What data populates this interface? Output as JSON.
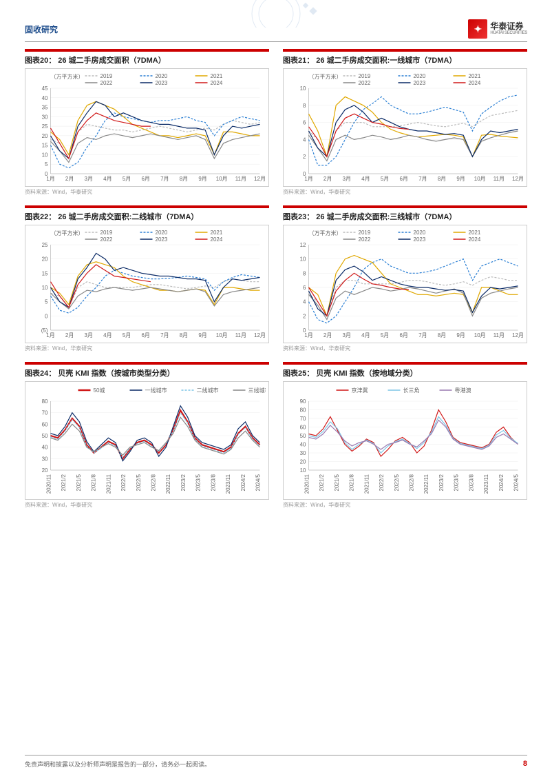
{
  "header": {
    "category": "固收研究",
    "logo_cn": "华泰证券",
    "logo_en": "HUATAI SECURITIES"
  },
  "footer": {
    "disclaimer": "免责声明和披露以及分析师声明是报告的一部分，请务必一起阅读。",
    "page": "8"
  },
  "source": "资料来源：Wind，华泰研究",
  "colors": {
    "2019": "#bbbbbb",
    "2020": "#2a7fd4",
    "2021": "#e0a800",
    "2022": "#888888",
    "2023": "#0a2a66",
    "2024": "#d01818",
    "city50": "#d01818",
    "tier1": "#0a2a66",
    "tier2": "#7fc6e6",
    "tier3": "#888888",
    "jjj": "#d01818",
    "csy": "#7fc6e6",
    "yga": "#9a7ab0",
    "title_border": "#c00",
    "box_border": "#ccc",
    "axis": "#999",
    "text": "#333"
  },
  "charts": [
    {
      "id": "c20",
      "title": "图表20：  26 城二手房成交面积（7DMA）",
      "ylabel": "（万平方米）",
      "xlabels": [
        "1月",
        "2月",
        "3月",
        "4月",
        "5月",
        "6月",
        "7月",
        "8月",
        "9月",
        "10月",
        "11月",
        "12月"
      ],
      "ylim": [
        0,
        45
      ],
      "ytick": 5,
      "series": [
        {
          "name": "2019",
          "dash": true,
          "color": "#bbbbbb",
          "data": [
            18,
            16,
            8,
            22,
            26,
            25,
            24,
            23,
            23,
            22,
            23,
            24,
            25,
            24,
            23,
            22,
            23,
            24,
            23,
            26,
            28,
            27,
            26,
            27
          ]
        },
        {
          "name": "2020",
          "dash": true,
          "color": "#2a7fd4",
          "data": [
            15,
            5,
            3,
            6,
            14,
            20,
            28,
            32,
            30,
            29,
            28,
            27,
            28,
            28,
            29,
            30,
            28,
            27,
            20,
            26,
            28,
            30,
            29,
            28
          ]
        },
        {
          "name": "2021",
          "dash": false,
          "color": "#e0a800",
          "data": [
            22,
            18,
            10,
            28,
            36,
            38,
            36,
            34,
            30,
            26,
            24,
            22,
            20,
            20,
            19,
            20,
            21,
            20,
            10,
            22,
            22,
            21,
            20,
            20
          ]
        },
        {
          "name": "2022",
          "dash": false,
          "color": "#888888",
          "data": [
            17,
            12,
            6,
            16,
            19,
            18,
            20,
            21,
            20,
            19,
            20,
            21,
            20,
            19,
            18,
            19,
            20,
            18,
            8,
            16,
            18,
            19,
            20,
            21
          ]
        },
        {
          "name": "2023",
          "dash": false,
          "color": "#0a2a66",
          "data": [
            20,
            12,
            8,
            25,
            32,
            38,
            36,
            30,
            32,
            30,
            28,
            27,
            26,
            26,
            25,
            24,
            24,
            23,
            10,
            20,
            25,
            24,
            25,
            26
          ]
        },
        {
          "name": "2024",
          "dash": false,
          "color": "#d01818",
          "data": [
            24,
            16,
            8,
            22,
            28,
            32,
            30,
            28,
            27,
            26,
            25,
            25
          ]
        }
      ]
    },
    {
      "id": "c21",
      "title": "图表21：  26 城二手房成交面积:一线城市（7DMA）",
      "ylabel": "（万平方米）",
      "xlabels": [
        "1月",
        "2月",
        "3月",
        "4月",
        "5月",
        "6月",
        "7月",
        "8月",
        "9月",
        "10月",
        "11月",
        "12月"
      ],
      "ylim": [
        0,
        10
      ],
      "ytick": 2,
      "series": [
        {
          "name": "2019",
          "dash": true,
          "color": "#bbbbbb",
          "data": [
            5,
            4,
            2,
            5,
            6,
            6,
            6,
            5.5,
            5.5,
            5.5,
            5.6,
            5.8,
            6,
            5.8,
            5.6,
            5.5,
            5.7,
            5.9,
            5.5,
            6.2,
            6.8,
            7,
            7.2,
            7.4
          ]
        },
        {
          "name": "2020",
          "dash": true,
          "color": "#2a7fd4",
          "data": [
            4,
            1,
            1,
            2,
            4,
            6,
            7.5,
            8.2,
            9,
            8,
            7.5,
            7,
            7,
            7.2,
            7.5,
            7.8,
            7.5,
            7.2,
            5,
            7,
            7.8,
            8.5,
            9,
            9.2
          ]
        },
        {
          "name": "2021",
          "dash": false,
          "color": "#e0a800",
          "data": [
            7,
            5,
            2,
            8,
            9,
            8.5,
            8,
            7.2,
            6,
            5.2,
            4.8,
            4.5,
            4.3,
            4.4,
            4.5,
            4.6,
            4.5,
            4.3,
            2,
            4.5,
            4.6,
            4.4,
            4.3,
            4.2
          ]
        },
        {
          "name": "2022",
          "dash": false,
          "color": "#888888",
          "data": [
            4.5,
            3,
            1.5,
            4,
            4.5,
            4,
            4.2,
            4.5,
            4.3,
            4,
            4.2,
            4.5,
            4.3,
            4,
            3.8,
            4,
            4.2,
            4,
            2,
            3.8,
            4.2,
            4.5,
            4.8,
            5
          ]
        },
        {
          "name": "2023",
          "dash": false,
          "color": "#0a2a66",
          "data": [
            5,
            3,
            2,
            6,
            7.5,
            8,
            7.2,
            6,
            6.5,
            6,
            5.5,
            5.2,
            5,
            5,
            4.8,
            4.6,
            4.7,
            4.5,
            2,
            4,
            5,
            4.8,
            5,
            5.2
          ]
        },
        {
          "name": "2024",
          "dash": false,
          "color": "#d01818",
          "data": [
            5.5,
            4,
            2,
            5,
            6.5,
            7,
            6.5,
            6,
            5.8,
            5.5,
            5.3,
            5.2
          ]
        }
      ]
    },
    {
      "id": "c22",
      "title": "图表22：  26 城二手房成交面积:二线城市（7DMA）",
      "ylabel": "（万平方米）",
      "xlabels": [
        "1月",
        "2月",
        "3月",
        "4月",
        "5月",
        "6月",
        "7月",
        "8月",
        "9月",
        "10月",
        "11月",
        "12月"
      ],
      "ylim": [
        -5,
        25
      ],
      "ytick": 5,
      "series": [
        {
          "name": "2019",
          "dash": true,
          "color": "#bbbbbb",
          "data": [
            8,
            7,
            3,
            10,
            12,
            11,
            10,
            10,
            10,
            10,
            10.5,
            11,
            11,
            10.5,
            10,
            9.5,
            10,
            10.5,
            10,
            12,
            13,
            12.5,
            12,
            12
          ]
        },
        {
          "name": "2020",
          "dash": true,
          "color": "#2a7fd4",
          "data": [
            7,
            2,
            1,
            3,
            7,
            10,
            14,
            16,
            15,
            14,
            13.5,
            13,
            13,
            13.2,
            13.5,
            14,
            13.5,
            13,
            9,
            12,
            13.5,
            14.5,
            14,
            13.5
          ]
        },
        {
          "name": "2021",
          "dash": false,
          "color": "#e0a800",
          "data": [
            10,
            8,
            4,
            14,
            18,
            19,
            18,
            17,
            14,
            12,
            11,
            10,
            9,
            9,
            8.5,
            9,
            9.5,
            9,
            4,
            10,
            10,
            9.5,
            9,
            9
          ]
        },
        {
          "name": "2022",
          "dash": false,
          "color": "#888888",
          "data": [
            8,
            5,
            2.5,
            7,
            9,
            8.5,
            9.5,
            10,
            9.5,
            9,
            9.5,
            10,
            9.5,
            9,
            8.5,
            9,
            9.5,
            8.5,
            3.5,
            7.5,
            8.5,
            9,
            9.5,
            10
          ]
        },
        {
          "name": "2023",
          "dash": false,
          "color": "#0a2a66",
          "data": [
            10,
            5,
            3,
            13,
            17,
            22,
            20,
            16,
            17,
            16,
            15,
            14.5,
            14,
            14,
            13.5,
            13,
            13,
            12.5,
            5,
            10,
            13,
            12.5,
            13,
            13.5
          ]
        },
        {
          "name": "2024",
          "dash": false,
          "color": "#d01818",
          "data": [
            12,
            7,
            3,
            11,
            15,
            18,
            16,
            14,
            13.5,
            13,
            12.5,
            12
          ]
        }
      ]
    },
    {
      "id": "c23",
      "title": "图表23：  26 城二手房成交面积:三线城市（7DMA）",
      "ylabel": "（万平方米）",
      "xlabels": [
        "1月",
        "2月",
        "3月",
        "4月",
        "5月",
        "6月",
        "7月",
        "8月",
        "9月",
        "10月",
        "11月",
        "12月"
      ],
      "ylim": [
        0,
        12
      ],
      "ytick": 2,
      "series": [
        {
          "name": "2019",
          "dash": true,
          "color": "#bbbbbb",
          "data": [
            5,
            4,
            2,
            6,
            7,
            7,
            6.5,
            6.5,
            6.5,
            6.5,
            6.7,
            7,
            7,
            6.8,
            6.5,
            6.3,
            6.5,
            6.8,
            6.3,
            7,
            7.5,
            7.3,
            7,
            7
          ]
        },
        {
          "name": "2020",
          "dash": true,
          "color": "#2a7fd4",
          "data": [
            4,
            1.5,
            1,
            2,
            4,
            6,
            8.5,
            9.5,
            10,
            9,
            8.5,
            8,
            8,
            8.2,
            8.5,
            9,
            9.5,
            10,
            7,
            9,
            9.5,
            10,
            9.5,
            9
          ]
        },
        {
          "name": "2021",
          "dash": false,
          "color": "#e0a800",
          "data": [
            6,
            5,
            2,
            8,
            10,
            10.5,
            10,
            9.5,
            8,
            6.5,
            6,
            5.5,
            5,
            5,
            4.8,
            5,
            5.2,
            5,
            2.5,
            6,
            6,
            5.5,
            5,
            5
          ]
        },
        {
          "name": "2022",
          "dash": false,
          "color": "#888888",
          "data": [
            5,
            3.5,
            1.5,
            4.5,
            5.5,
            5,
            5.5,
            6,
            5.8,
            5.5,
            5.7,
            6,
            5.8,
            5.5,
            5.2,
            5.5,
            5.8,
            5.2,
            2,
            4.5,
            5.2,
            5.5,
            5.8,
            6
          ]
        },
        {
          "name": "2023",
          "dash": false,
          "color": "#0a2a66",
          "data": [
            5.5,
            3,
            2,
            7,
            8.5,
            9,
            8.2,
            7,
            7.5,
            7,
            6.5,
            6.2,
            6,
            6,
            5.8,
            5.6,
            5.7,
            5.5,
            2.5,
            4.8,
            6,
            5.8,
            6,
            6.2
          ]
        },
        {
          "name": "2024",
          "dash": false,
          "color": "#d01818",
          "data": [
            6,
            4,
            2,
            5.5,
            7,
            8,
            7.2,
            6.5,
            6.3,
            6,
            5.8,
            5.7
          ]
        }
      ]
    },
    {
      "id": "c24",
      "title": "图表24：  贝壳 KMI 指数（按城市类型分类）",
      "ylabel": "",
      "xlabels": [
        "2020/11",
        "2021/2",
        "2021/5",
        "2021/8",
        "2021/11",
        "2022/2",
        "2022/5",
        "2022/8",
        "2022/11",
        "2023/2",
        "2023/5",
        "2023/8",
        "2023/11",
        "2024/2",
        "2024/5"
      ],
      "ylim": [
        20,
        80
      ],
      "ytick": 10,
      "rot": true,
      "legend_items": [
        {
          "name": "50城",
          "color": "#d01818",
          "thick": true
        },
        {
          "name": "一线城市",
          "color": "#0a2a66"
        },
        {
          "name": "二线城市",
          "color": "#7fc6e6",
          "dash": true
        },
        {
          "name": "三线城市",
          "color": "#888888"
        }
      ],
      "series": [
        {
          "name": "50城",
          "color": "#d01818",
          "thick": true,
          "data": [
            50,
            48,
            55,
            65,
            58,
            42,
            35,
            40,
            45,
            42,
            30,
            38,
            44,
            46,
            42,
            35,
            42,
            55,
            72,
            62,
            48,
            42,
            40,
            38,
            36,
            40,
            52,
            58,
            48,
            42
          ]
        },
        {
          "name": "一线城市",
          "color": "#0a2a66",
          "data": [
            52,
            50,
            58,
            70,
            62,
            45,
            36,
            42,
            48,
            44,
            28,
            36,
            46,
            48,
            44,
            32,
            40,
            58,
            76,
            66,
            50,
            44,
            42,
            40,
            38,
            42,
            56,
            62,
            50,
            44
          ]
        },
        {
          "name": "二线城市",
          "color": "#7fc6e6",
          "dash": true,
          "data": [
            49,
            47,
            54,
            64,
            57,
            41,
            35,
            39,
            44,
            41,
            31,
            39,
            43,
            45,
            41,
            36,
            43,
            54,
            70,
            61,
            47,
            41,
            39,
            37,
            35,
            39,
            51,
            57,
            47,
            41
          ]
        },
        {
          "name": "三线城市",
          "color": "#888888",
          "data": [
            48,
            46,
            52,
            60,
            54,
            40,
            36,
            40,
            43,
            40,
            33,
            40,
            42,
            44,
            40,
            37,
            44,
            52,
            66,
            58,
            46,
            40,
            38,
            36,
            34,
            38,
            48,
            54,
            46,
            40
          ]
        }
      ]
    },
    {
      "id": "c25",
      "title": "图表25：  贝壳 KMI 指数（按地域分类）",
      "ylabel": "",
      "xlabels": [
        "2020/11",
        "2021/2",
        "2021/5",
        "2021/8",
        "2021/11",
        "2022/2",
        "2022/5",
        "2022/8",
        "2022/11",
        "2023/2",
        "2023/5",
        "2023/8",
        "2023/11",
        "2024/2",
        "2024/5"
      ],
      "ylim": [
        10,
        90
      ],
      "ytick": 10,
      "rot": true,
      "legend_items": [
        {
          "name": "京津冀",
          "color": "#d01818"
        },
        {
          "name": "长三角",
          "color": "#7fc6e6"
        },
        {
          "name": "粤港澳",
          "color": "#9a7ab0"
        }
      ],
      "series": [
        {
          "name": "京津冀",
          "color": "#d01818",
          "data": [
            52,
            50,
            58,
            72,
            56,
            40,
            32,
            38,
            46,
            42,
            26,
            34,
            44,
            48,
            42,
            30,
            38,
            56,
            80,
            66,
            48,
            42,
            40,
            38,
            36,
            40,
            54,
            60,
            48,
            40
          ]
        },
        {
          "name": "长三角",
          "color": "#7fc6e6",
          "data": [
            50,
            48,
            55,
            66,
            58,
            42,
            34,
            40,
            45,
            41,
            30,
            38,
            43,
            46,
            41,
            35,
            42,
            54,
            72,
            62,
            47,
            41,
            39,
            37,
            35,
            39,
            51,
            56,
            47,
            41
          ]
        },
        {
          "name": "粤港澳",
          "color": "#9a7ab0",
          "data": [
            48,
            46,
            52,
            62,
            54,
            44,
            38,
            42,
            44,
            40,
            34,
            40,
            42,
            45,
            40,
            37,
            44,
            52,
            68,
            60,
            46,
            40,
            38,
            36,
            34,
            38,
            48,
            52,
            46,
            40
          ]
        }
      ]
    }
  ]
}
